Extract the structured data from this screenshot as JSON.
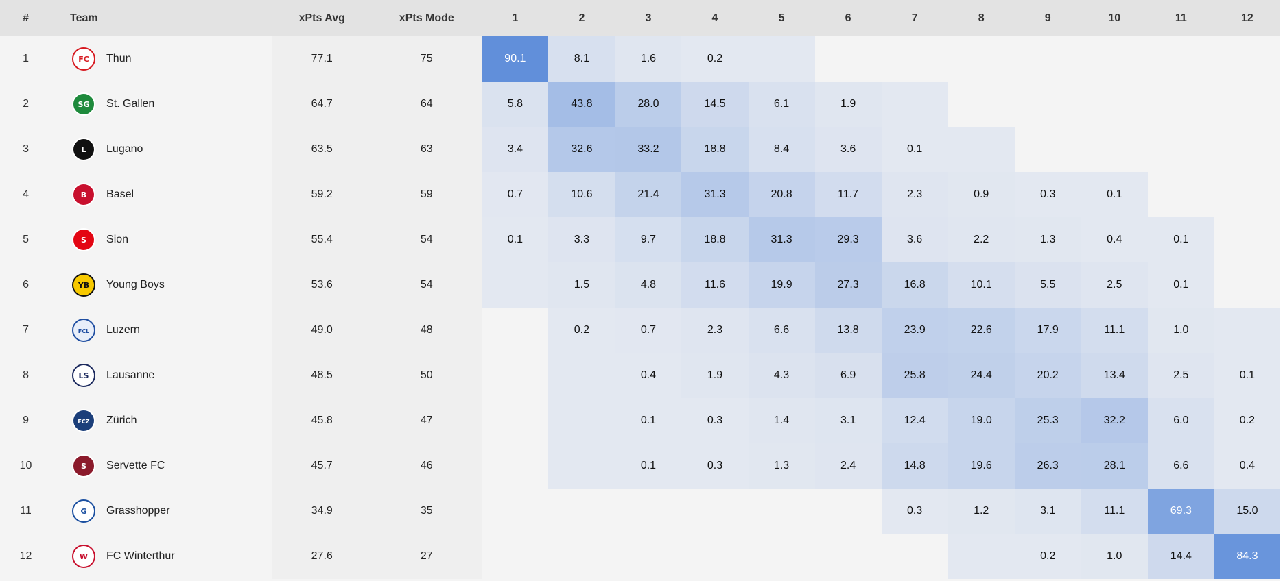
{
  "headers": {
    "rank": "#",
    "team": "Team",
    "xpts_avg": "xPts Avg",
    "xpts_mode": "xPts Mode",
    "positions": [
      "1",
      "2",
      "3",
      "4",
      "5",
      "6",
      "7",
      "8",
      "9",
      "10",
      "11",
      "12"
    ]
  },
  "colors": {
    "heat_base": "#4a7fd6"
  },
  "rows": [
    {
      "rank": "1",
      "team": "Thun",
      "logo": {
        "icon": "thun-logo",
        "color": "#d71920",
        "bg": "#ffffff",
        "glyph": "FC"
      },
      "xpts_avg": "77.1",
      "xpts_mode": "75",
      "probs": [
        "90.1",
        "8.1",
        "1.6",
        "0.2",
        "",
        "",
        "",
        "",
        "",
        "",
        "",
        ""
      ],
      "values": [
        90.1,
        8.1,
        1.6,
        0.2,
        0,
        null,
        null,
        null,
        null,
        null,
        null,
        null
      ]
    },
    {
      "rank": "2",
      "team": "St. Gallen",
      "logo": {
        "icon": "st-gallen-logo",
        "color": "#ffffff",
        "bg": "#1e8a3c",
        "glyph": "SG"
      },
      "xpts_avg": "64.7",
      "xpts_mode": "64",
      "probs": [
        "5.8",
        "43.8",
        "28.0",
        "14.5",
        "6.1",
        "1.9",
        "",
        "",
        "",
        "",
        "",
        ""
      ],
      "values": [
        5.8,
        43.8,
        28.0,
        14.5,
        6.1,
        1.9,
        0,
        null,
        null,
        null,
        null,
        null
      ]
    },
    {
      "rank": "3",
      "team": "Lugano",
      "logo": {
        "icon": "lugano-logo",
        "color": "#ffffff",
        "bg": "#111111",
        "glyph": "L"
      },
      "xpts_avg": "63.5",
      "xpts_mode": "63",
      "probs": [
        "3.4",
        "32.6",
        "33.2",
        "18.8",
        "8.4",
        "3.6",
        "0.1",
        "",
        "",
        "",
        "",
        ""
      ],
      "values": [
        3.4,
        32.6,
        33.2,
        18.8,
        8.4,
        3.6,
        0.1,
        0,
        null,
        null,
        null,
        null
      ]
    },
    {
      "rank": "4",
      "team": "Basel",
      "logo": {
        "icon": "basel-logo",
        "color": "#ffffff",
        "bg": "#c8102e",
        "glyph": "B"
      },
      "xpts_avg": "59.2",
      "xpts_mode": "59",
      "probs": [
        "0.7",
        "10.6",
        "21.4",
        "31.3",
        "20.8",
        "11.7",
        "2.3",
        "0.9",
        "0.3",
        "0.1",
        "",
        ""
      ],
      "values": [
        0.7,
        10.6,
        21.4,
        31.3,
        20.8,
        11.7,
        2.3,
        0.9,
        0.3,
        0.1,
        null,
        null
      ]
    },
    {
      "rank": "5",
      "team": "Sion",
      "logo": {
        "icon": "sion-logo",
        "color": "#ffffff",
        "bg": "#e30613",
        "glyph": "S"
      },
      "xpts_avg": "55.4",
      "xpts_mode": "54",
      "probs": [
        "0.1",
        "3.3",
        "9.7",
        "18.8",
        "31.3",
        "29.3",
        "3.6",
        "2.2",
        "1.3",
        "0.4",
        "0.1",
        ""
      ],
      "values": [
        0.1,
        3.3,
        9.7,
        18.8,
        31.3,
        29.3,
        3.6,
        2.2,
        1.3,
        0.4,
        0.1,
        null
      ]
    },
    {
      "rank": "6",
      "team": "Young Boys",
      "logo": {
        "icon": "young-boys-logo",
        "color": "#111111",
        "bg": "#f7c900",
        "glyph": "YB"
      },
      "xpts_avg": "53.6",
      "xpts_mode": "54",
      "probs": [
        "",
        "1.5",
        "4.8",
        "11.6",
        "19.9",
        "27.3",
        "16.8",
        "10.1",
        "5.5",
        "2.5",
        "0.1",
        ""
      ],
      "values": [
        0,
        1.5,
        4.8,
        11.6,
        19.9,
        27.3,
        16.8,
        10.1,
        5.5,
        2.5,
        0.1,
        null
      ]
    },
    {
      "rank": "7",
      "team": "Luzern",
      "logo": {
        "icon": "luzern-logo",
        "color": "#1f4ea1",
        "bg": "#e8eef9",
        "glyph": "FCL"
      },
      "xpts_avg": "49.0",
      "xpts_mode": "48",
      "probs": [
        "",
        "0.2",
        "0.7",
        "2.3",
        "6.6",
        "13.8",
        "23.9",
        "22.6",
        "17.9",
        "11.1",
        "1.0",
        ""
      ],
      "values": [
        null,
        0.2,
        0.7,
        2.3,
        6.6,
        13.8,
        23.9,
        22.6,
        17.9,
        11.1,
        1.0,
        0
      ]
    },
    {
      "rank": "8",
      "team": "Lausanne",
      "logo": {
        "icon": "lausanne-logo",
        "color": "#1c2a5e",
        "bg": "#ffffff",
        "glyph": "LS"
      },
      "xpts_avg": "48.5",
      "xpts_mode": "50",
      "probs": [
        "",
        "",
        "0.4",
        "1.9",
        "4.3",
        "6.9",
        "25.8",
        "24.4",
        "20.2",
        "13.4",
        "2.5",
        "0.1"
      ],
      "values": [
        null,
        0,
        0.4,
        1.9,
        4.3,
        6.9,
        25.8,
        24.4,
        20.2,
        13.4,
        2.5,
        0.1
      ]
    },
    {
      "rank": "9",
      "team": "Zürich",
      "logo": {
        "icon": "zurich-logo",
        "color": "#ffffff",
        "bg": "#1c3f7a",
        "glyph": "FCZ"
      },
      "xpts_avg": "45.8",
      "xpts_mode": "47",
      "probs": [
        "",
        "",
        "0.1",
        "0.3",
        "1.4",
        "3.1",
        "12.4",
        "19.0",
        "25.3",
        "32.2",
        "6.0",
        "0.2"
      ],
      "values": [
        null,
        0,
        0.1,
        0.3,
        1.4,
        3.1,
        12.4,
        19.0,
        25.3,
        32.2,
        6.0,
        0.2
      ]
    },
    {
      "rank": "10",
      "team": "Servette FC",
      "logo": {
        "icon": "servette-logo",
        "color": "#ffffff",
        "bg": "#8b1a2b",
        "glyph": "S"
      },
      "xpts_avg": "45.7",
      "xpts_mode": "46",
      "probs": [
        "",
        "",
        "0.1",
        "0.3",
        "1.3",
        "2.4",
        "14.8",
        "19.6",
        "26.3",
        "28.1",
        "6.6",
        "0.4"
      ],
      "values": [
        null,
        0,
        0.1,
        0.3,
        1.3,
        2.4,
        14.8,
        19.6,
        26.3,
        28.1,
        6.6,
        0.4
      ]
    },
    {
      "rank": "11",
      "team": "Grasshopper",
      "logo": {
        "icon": "grasshopper-logo",
        "color": "#1a4fa0",
        "bg": "#ffffff",
        "glyph": "G"
      },
      "xpts_avg": "34.9",
      "xpts_mode": "35",
      "probs": [
        "",
        "",
        "",
        "",
        "",
        "",
        "0.3",
        "1.2",
        "3.1",
        "11.1",
        "69.3",
        "15.0"
      ],
      "values": [
        null,
        null,
        null,
        null,
        null,
        null,
        0.3,
        1.2,
        3.1,
        11.1,
        69.3,
        15.0
      ]
    },
    {
      "rank": "12",
      "team": "FC Winterthur",
      "logo": {
        "icon": "winterthur-logo",
        "color": "#c8102e",
        "bg": "#ffffff",
        "glyph": "W"
      },
      "xpts_avg": "27.6",
      "xpts_mode": "27",
      "probs": [
        "",
        "",
        "",
        "",
        "",
        "",
        "",
        "",
        "0.2",
        "1.0",
        "14.4",
        "84.3"
      ],
      "values": [
        null,
        null,
        null,
        null,
        null,
        null,
        null,
        0,
        0.2,
        1.0,
        14.4,
        84.3
      ]
    }
  ]
}
